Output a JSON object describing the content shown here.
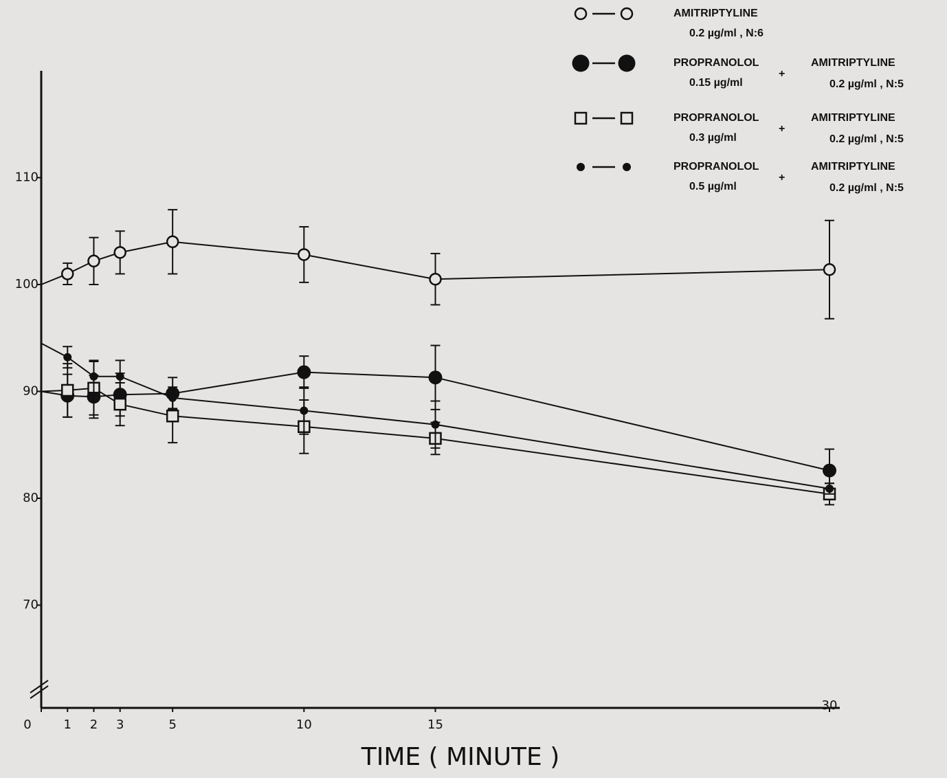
{
  "chart_data": {
    "type": "line",
    "xlabel": "TIME ( MINUTE )",
    "x": [
      0,
      1,
      2,
      3,
      5,
      10,
      15,
      30
    ],
    "xlim": [
      0,
      30
    ],
    "xticks": [
      0,
      1,
      2,
      3,
      5,
      10,
      15,
      30
    ],
    "ylim": [
      60,
      120
    ],
    "yticks": [
      70,
      80,
      90,
      100,
      110
    ],
    "series": [
      {
        "name": "AMITRIPTYLINE",
        "dose": "0.2  µg/ml , N:6",
        "marker": "open-circle",
        "color": "#111",
        "values": [
          100,
          101,
          102.2,
          103,
          104,
          102.8,
          100.5,
          101.4
        ],
        "errors": [
          null,
          1,
          2.2,
          2,
          3,
          2.6,
          2.4,
          4.6
        ]
      },
      {
        "name": "PROPRANOLOL",
        "dose": "0.15  µg/ml",
        "plus": "+",
        "combo_name": "AMITRIPTYLINE",
        "combo_dose": "0.2  µg/ml , N:5",
        "marker": "large-filled-circle",
        "color": "#111",
        "values": [
          90,
          89.6,
          89.5,
          89.7,
          89.8,
          91.8,
          91.3,
          82.6
        ],
        "errors": [
          null,
          2,
          2,
          2,
          1.5,
          1.5,
          3,
          2
        ]
      },
      {
        "name": "PROPRANOLOL",
        "dose": "0.3  µg/ml",
        "plus": "+",
        "combo_name": "AMITRIPTYLINE",
        "combo_dose": "0.2  µg/ml , N:5",
        "marker": "open-square",
        "color": "#111",
        "values": [
          90,
          90.1,
          90.3,
          88.8,
          87.7,
          86.7,
          85.6,
          80.4
        ],
        "errors": [
          null,
          2.5,
          2.5,
          2,
          2.5,
          2.5,
          1.5,
          1
        ]
      },
      {
        "name": "PROPRANOLOL",
        "dose": "0.5  µg/ml",
        "plus": "+",
        "combo_name": "AMITRIPTYLINE",
        "combo_dose": "0.2  µg/ml , N:5",
        "marker": "small-filled-circle",
        "color": "#111",
        "values": [
          94.5,
          93.2,
          91.4,
          91.4,
          89.4,
          88.2,
          86.9,
          80.9
        ],
        "errors": [
          null,
          1,
          1.5,
          1.5,
          1,
          2.2,
          2.2,
          0.5
        ]
      }
    ]
  }
}
